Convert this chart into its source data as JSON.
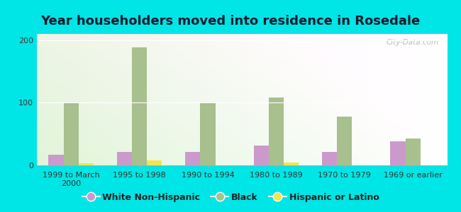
{
  "title": "Year householders moved into residence in Rosedale",
  "categories": [
    "1999 to March\n2000",
    "1995 to 1998",
    "1990 to 1994",
    "1980 to 1989",
    "1970 to 1979",
    "1969 or earlier"
  ],
  "white_non_hispanic": [
    17,
    22,
    21,
    32,
    22,
    38
  ],
  "black": [
    101,
    188,
    101,
    108,
    78,
    43
  ],
  "hispanic_or_latino": [
    3,
    8,
    0,
    4,
    0,
    0
  ],
  "white_color": "#cc99cc",
  "black_color": "#a8bf8e",
  "hispanic_color": "#f5e44a",
  "bg_color": "#00e5e5",
  "ylim": [
    0,
    210
  ],
  "yticks": [
    0,
    100,
    200
  ],
  "bar_width": 0.22,
  "title_fontsize": 13,
  "tick_fontsize": 8,
  "legend_fontsize": 9,
  "watermark": "City-Data.com"
}
